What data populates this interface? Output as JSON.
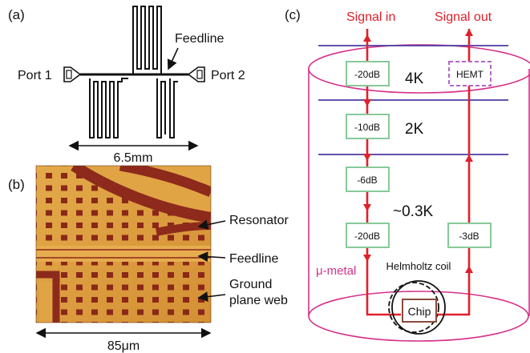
{
  "panel_a": {
    "label": "(a)",
    "feedline": "Feedline",
    "port1": "Port 1",
    "port2": "Port 2",
    "width": "6.5mm"
  },
  "panel_b": {
    "label": "(b)",
    "resonator": "Resonator",
    "feedline": "Feedline",
    "ground_line1": "Ground",
    "ground_line2": "plane web",
    "scale": "85μm"
  },
  "panel_c": {
    "label": "(c)",
    "signal_in": "Signal in",
    "signal_out": "Signal out",
    "temp_4k": "4K",
    "temp_2k": "2K",
    "temp_03k": "~0.3K",
    "att_1": "-20dB",
    "att_2": "-10dB",
    "att_3": "-6dB",
    "att_4": "-20dB",
    "att_out": "-3dB",
    "hemt": "HEMT",
    "chip": "Chip",
    "helmholtz": "Helmholtz coil",
    "mu_metal": "μ-metal"
  },
  "colors": {
    "signal": "#e0202a",
    "mu_metal": "#d5318a",
    "stage": "#4b3aa3",
    "attenuator": "#88c99a",
    "hemt": "#b366c6",
    "chip": "#8b4a3c",
    "photo_bg": "#d99b3c",
    "photo_metal": "#8d2a1c"
  }
}
